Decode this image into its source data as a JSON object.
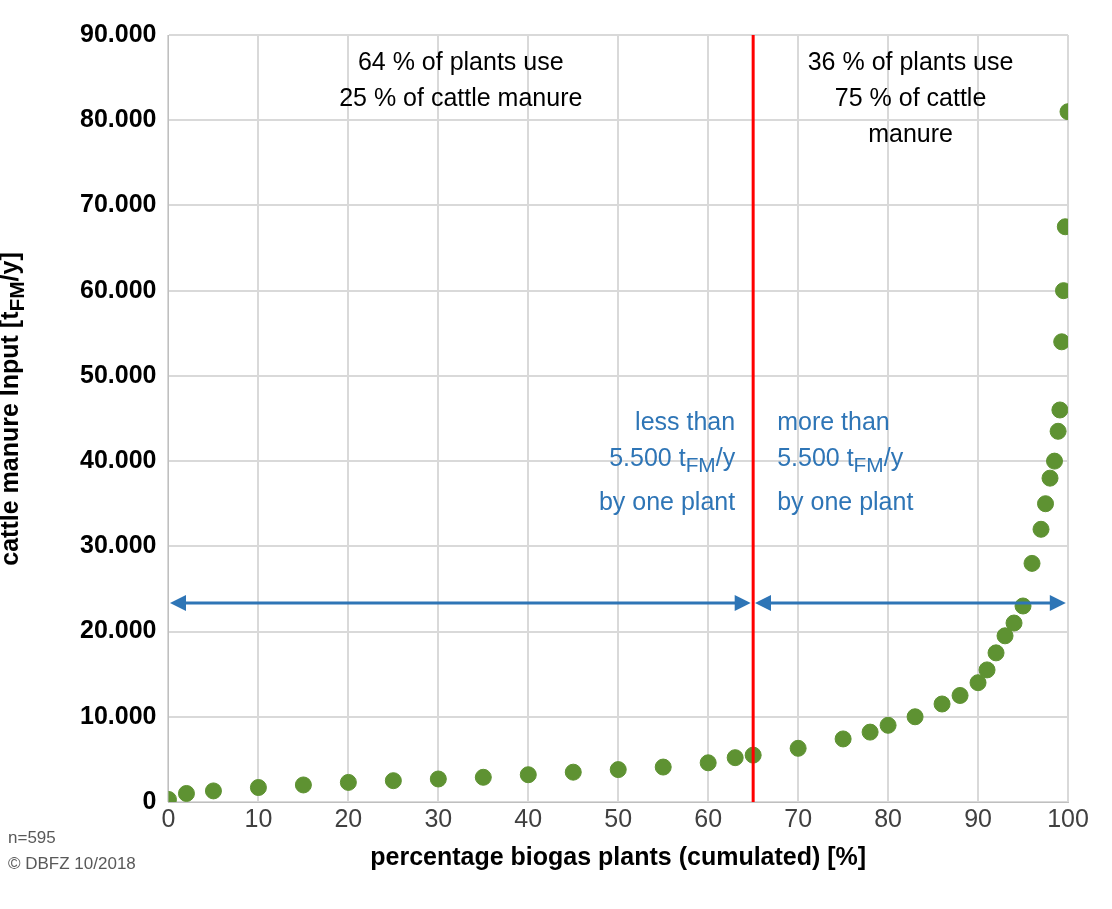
{
  "chart_data": {
    "type": "scatter",
    "xlabel": "percentage biogas plants (cumulated) [%]",
    "ylabel": "cattle manure Input [t$_{FM}$/y]",
    "x": [
      0,
      2,
      5,
      10,
      15,
      20,
      25,
      30,
      35,
      40,
      45,
      50,
      55,
      60,
      63,
      65,
      70,
      75,
      78,
      80,
      83,
      86,
      88,
      90,
      91,
      92,
      93,
      94,
      95,
      96,
      97,
      97.5,
      98,
      98.5,
      98.9,
      99.1,
      99.3,
      99.5,
      99.7,
      100
    ],
    "series": [
      {
        "color": "#5e9232",
        "values": [
          300,
          1000,
          1300,
          1700,
          2000,
          2300,
          2500,
          2700,
          2900,
          3200,
          3500,
          3800,
          4100,
          4600,
          5200,
          5500,
          6300,
          7400,
          8200,
          9000,
          10000,
          11500,
          12500,
          14000,
          15500,
          17500,
          19500,
          21000,
          23000,
          28000,
          32000,
          35000,
          38000,
          40000,
          43500,
          46000,
          54000,
          60000,
          67500,
          81000
        ]
      }
    ],
    "xlim": [
      0,
      100
    ],
    "xticks": [
      0,
      10,
      20,
      30,
      40,
      50,
      60,
      70,
      80,
      90,
      100
    ],
    "ylim": [
      0,
      90000
    ],
    "yticks": [
      {
        "value": 0,
        "label": "0"
      },
      {
        "value": 10000,
        "label": "10.000"
      },
      {
        "value": 20000,
        "label": "20.000"
      },
      {
        "value": 30000,
        "label": "30.000"
      },
      {
        "value": 40000,
        "label": "40.000"
      },
      {
        "value": 50000,
        "label": "50.000"
      },
      {
        "value": 60000,
        "label": "60.000"
      },
      {
        "value": 70000,
        "label": "70.000"
      },
      {
        "value": 80000,
        "label": "80.000"
      },
      {
        "value": 90000,
        "label": "90.000"
      }
    ],
    "ref_lines": [
      {
        "axis": "x",
        "value": 65,
        "color": "#ff0000"
      }
    ],
    "annotations": [
      "64 % of plants use\n25 % of cattle manure",
      "36 % of plants use\n75 % of cattle\nmanure",
      "less than\n5.500 t$_{FM}$/y\nby one plant",
      "more than\n5.500 t$_{FM}$/y\nby one plant",
      "n=595",
      "© DBFZ 10/2018"
    ],
    "grid": true,
    "legend": false,
    "marker": "circle"
  }
}
